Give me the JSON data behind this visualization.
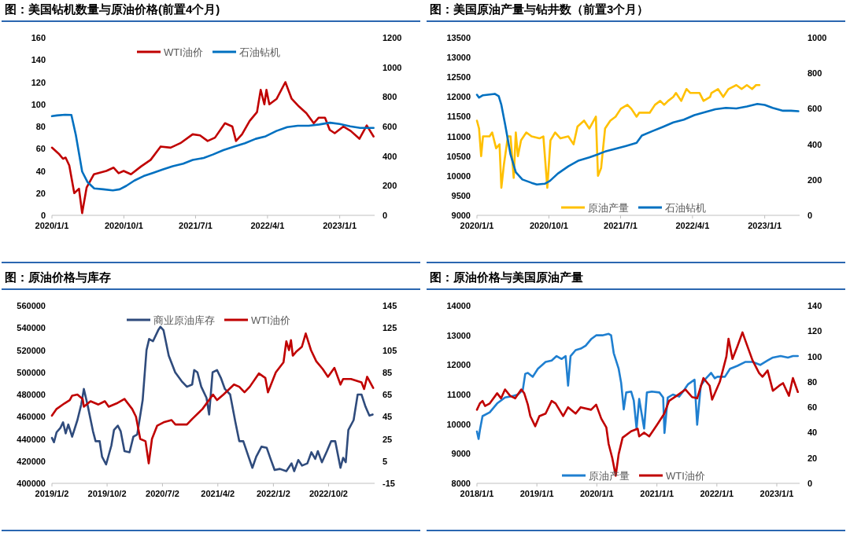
{
  "chart_data": [
    {
      "type": "line",
      "title": "图：美国钻机数量与原油价格(前置4个月)",
      "legend": "top",
      "xlim": [
        "2020-01-01",
        "2023-05-14"
      ],
      "xticks": [
        {
          "value": "2020-01-01",
          "label": "2020/1/1"
        },
        {
          "value": "2020-10-01",
          "label": "2020/10/1"
        },
        {
          "value": "2021-07-01",
          "label": "2021/7/1"
        },
        {
          "value": "2022-04-01",
          "label": "2022/4/1"
        },
        {
          "value": "2023-01-01",
          "label": "2023/1/1"
        }
      ],
      "ylim": [
        0,
        160
      ],
      "yticks": [
        0,
        20,
        40,
        60,
        80,
        100,
        120,
        140,
        160
      ],
      "y2lim": [
        0,
        1200
      ],
      "y2ticks": [
        0,
        200,
        400,
        600,
        800,
        1000,
        1200
      ],
      "series": [
        {
          "name": "WTI油价",
          "color": "#c00000",
          "x": [
            "2020-01-01",
            "2020-01-29",
            "2020-02-12",
            "2020-02-22",
            "2020-03-07",
            "2020-03-26",
            "2020-04-13",
            "2020-04-25",
            "2020-05-12",
            "2020-06-09",
            "2020-07-26",
            "2020-08-23",
            "2020-09-11",
            "2020-09-30",
            "2020-10-28",
            "2020-12-05",
            "2021-01-11",
            "2021-02-18",
            "2021-03-28",
            "2021-05-04",
            "2021-06-20",
            "2021-07-18",
            "2021-08-16",
            "2021-09-13",
            "2021-10-21",
            "2021-11-18",
            "2021-12-02",
            "2021-12-25",
            "2022-01-23",
            "2022-02-20",
            "2022-03-06",
            "2022-03-20",
            "2022-03-28",
            "2022-04-08",
            "2022-05-06",
            "2022-06-08",
            "2022-07-02",
            "2022-07-30",
            "2022-08-27",
            "2022-09-24",
            "2022-10-13",
            "2022-11-06",
            "2022-11-24",
            "2022-12-13",
            "2023-01-15",
            "2023-02-12",
            "2023-03-17",
            "2023-04-14",
            "2023-05-10"
          ],
          "values": [
            61,
            55,
            51,
            52,
            45,
            20,
            24,
            2,
            25,
            37,
            40,
            43,
            38,
            40,
            37,
            44,
            50,
            62,
            61,
            65,
            73,
            72,
            67,
            70,
            83,
            80,
            67,
            73,
            85,
            93,
            113,
            100,
            113,
            100,
            105,
            120,
            105,
            98,
            92,
            83,
            88,
            88,
            77,
            74,
            80,
            76,
            69,
            81,
            71
          ]
        },
        {
          "name": "石油钻机",
          "color": "#0070c0",
          "axis": "y2",
          "x": [
            "2020-01-01",
            "2020-01-20",
            "2020-02-20",
            "2020-03-15",
            "2020-04-01",
            "2020-04-25",
            "2020-05-15",
            "2020-06-10",
            "2020-07-15",
            "2020-08-20",
            "2020-09-15",
            "2020-10-10",
            "2020-11-10",
            "2020-12-15",
            "2021-01-20",
            "2021-02-25",
            "2021-04-05",
            "2021-05-15",
            "2021-06-20",
            "2021-08-01",
            "2021-09-05",
            "2021-10-15",
            "2021-11-25",
            "2022-01-05",
            "2022-02-15",
            "2022-03-25",
            "2022-05-05",
            "2022-06-15",
            "2022-07-25",
            "2022-09-05",
            "2022-10-15",
            "2022-11-25",
            "2023-01-01",
            "2023-02-10",
            "2023-03-20",
            "2023-05-10"
          ],
          "values": [
            670,
            675,
            680,
            678,
            543,
            296,
            226,
            182,
            176,
            169,
            176,
            199,
            235,
            265,
            287,
            309,
            332,
            349,
            374,
            388,
            411,
            441,
            464,
            487,
            517,
            534,
            570,
            596,
            605,
            605,
            614,
            626,
            617,
            601,
            591,
            591
          ]
        }
      ]
    },
    {
      "type": "line",
      "title": "图：美国原油产量与钻井数（前置3个月）",
      "legend": "bottom",
      "xlim": [
        "2020-01-01",
        "2023-05-14"
      ],
      "xticks": [
        {
          "value": "2020-01-01",
          "label": "2020/1/1"
        },
        {
          "value": "2020-10-01",
          "label": "2020/10/1"
        },
        {
          "value": "2021-07-01",
          "label": "2021/7/1"
        },
        {
          "value": "2022-04-01",
          "label": "2022/4/1"
        },
        {
          "value": "2023-01-01",
          "label": "2023/1/1"
        }
      ],
      "ylim": [
        9000,
        13500
      ],
      "yticks": [
        9000,
        9500,
        10000,
        10500,
        11000,
        11500,
        12000,
        12500,
        13000,
        13500
      ],
      "y2lim": [
        0,
        1000
      ],
      "y2ticks": [
        0,
        200,
        400,
        600,
        800,
        1000
      ],
      "series": [
        {
          "name": "原油产量",
          "color": "#ffc000",
          "x": [
            "2020-01-01",
            "2020-01-09",
            "2020-01-17",
            "2020-01-24",
            "2020-02-18",
            "2020-02-28",
            "2020-03-14",
            "2020-03-27",
            "2020-04-03",
            "2020-04-13",
            "2020-04-28",
            "2020-05-08",
            "2020-05-20",
            "2020-05-28",
            "2020-06-05",
            "2020-06-17",
            "2020-07-07",
            "2020-07-27",
            "2020-08-26",
            "2020-09-10",
            "2020-09-25",
            "2020-10-07",
            "2020-10-25",
            "2020-11-14",
            "2020-12-14",
            "2021-01-03",
            "2021-01-18",
            "2021-02-12",
            "2021-03-04",
            "2021-03-29",
            "2021-04-06",
            "2021-04-18",
            "2021-05-03",
            "2021-05-23",
            "2021-06-12",
            "2021-07-02",
            "2021-07-27",
            "2021-08-11",
            "2021-08-31",
            "2021-09-10",
            "2021-10-20",
            "2021-11-09",
            "2021-11-29",
            "2021-12-14",
            "2021-12-29",
            "2022-01-18",
            "2022-01-28",
            "2022-02-17",
            "2022-03-09",
            "2022-03-24",
            "2022-04-08",
            "2022-04-28",
            "2022-05-13",
            "2022-06-07",
            "2022-06-12",
            "2022-07-07",
            "2022-07-27",
            "2022-08-16",
            "2022-09-15",
            "2022-10-05",
            "2022-10-25",
            "2022-11-14",
            "2022-11-29",
            "2022-12-12"
          ],
          "values": [
            11400,
            11200,
            10500,
            11000,
            11000,
            11100,
            10700,
            10800,
            9700,
            10300,
            11000,
            11000,
            9950,
            11100,
            10500,
            10900,
            11100,
            11000,
            10950,
            11000,
            9700,
            10900,
            11100,
            10950,
            11000,
            10800,
            11250,
            11400,
            11200,
            11500,
            10000,
            10200,
            11200,
            11400,
            11500,
            11700,
            11800,
            11700,
            11500,
            11600,
            11600,
            11800,
            11900,
            11800,
            11900,
            12000,
            12100,
            11900,
            12200,
            12100,
            12100,
            12100,
            11900,
            12000,
            12100,
            12200,
            12000,
            12200,
            12300,
            12200,
            12300,
            12200,
            12300,
            12300
          ]
        },
        {
          "name": "石油钻机",
          "color": "#0070c0",
          "axis": "y2",
          "x": [
            "2020-01-01",
            "2020-01-09",
            "2020-01-24",
            "2020-03-09",
            "2020-03-24",
            "2020-04-03",
            "2020-04-18",
            "2020-05-08",
            "2020-05-28",
            "2020-06-22",
            "2020-07-27",
            "2020-08-16",
            "2020-09-15",
            "2020-10-05",
            "2020-11-04",
            "2020-12-14",
            "2021-01-23",
            "2021-03-04",
            "2021-04-03",
            "2021-05-03",
            "2021-06-12",
            "2021-07-22",
            "2021-08-31",
            "2021-09-20",
            "2021-10-30",
            "2021-12-09",
            "2022-01-18",
            "2022-02-27",
            "2022-04-08",
            "2022-05-18",
            "2022-06-27",
            "2022-08-06",
            "2022-09-15",
            "2022-10-25",
            "2022-12-04",
            "2023-01-01",
            "2023-01-31",
            "2023-03-12",
            "2023-04-11",
            "2023-05-09"
          ],
          "values": [
            679,
            663,
            676,
            684,
            671,
            622,
            507,
            342,
            243,
            202,
            183,
            174,
            178,
            194,
            235,
            276,
            309,
            326,
            342,
            359,
            375,
            391,
            408,
            449,
            474,
            498,
            523,
            539,
            564,
            581,
            597,
            605,
            602,
            613,
            627,
            622,
            605,
            589,
            589,
            586
          ]
        }
      ]
    },
    {
      "type": "line",
      "title": "图：原油价格与库存",
      "legend": "top",
      "xlim": [
        "2019-01-02",
        "2023-05-18"
      ],
      "xticks": [
        {
          "value": "2019-01-02",
          "label": "2019/1/2"
        },
        {
          "value": "2019-10-02",
          "label": "2019/10/2"
        },
        {
          "value": "2020-07-02",
          "label": "2020/7/2"
        },
        {
          "value": "2021-04-02",
          "label": "2021/4/2"
        },
        {
          "value": "2022-01-02",
          "label": "2022/1/2"
        },
        {
          "value": "2022-10-02",
          "label": "2022/10/2"
        }
      ],
      "ylim": [
        400000,
        560000
      ],
      "yticks": [
        400000,
        420000,
        440000,
        460000,
        480000,
        500000,
        520000,
        540000,
        560000
      ],
      "y2lim": [
        -15,
        145
      ],
      "y2ticks": [
        -15,
        5,
        25,
        45,
        65,
        85,
        105,
        125,
        145
      ],
      "series": [
        {
          "name": "商业原油库存",
          "color": "#2f4b7c",
          "x": [
            "2019-01-02",
            "2019-01-12",
            "2019-01-25",
            "2019-02-13",
            "2019-02-26",
            "2019-03-11",
            "2019-03-24",
            "2019-04-12",
            "2019-05-08",
            "2019-05-27",
            "2019-06-09",
            "2019-06-28",
            "2019-07-24",
            "2019-08-06",
            "2019-08-26",
            "2019-09-07",
            "2019-09-27",
            "2019-10-23",
            "2019-11-05",
            "2019-11-24",
            "2019-12-08",
            "2019-12-27",
            "2020-01-21",
            "2020-02-09",
            "2020-02-28",
            "2020-03-26",
            "2020-04-14",
            "2020-04-27",
            "2020-05-16",
            "2020-06-11",
            "2020-06-22",
            "2020-07-07",
            "2020-08-02",
            "2020-09-03",
            "2020-10-05",
            "2020-10-31",
            "2020-11-26",
            "2020-12-06",
            "2020-12-22",
            "2021-01-10",
            "2021-02-05",
            "2021-02-18",
            "2021-03-07",
            "2021-03-29",
            "2021-04-17",
            "2021-05-07",
            "2021-06-02",
            "2021-06-28",
            "2021-07-17",
            "2021-08-06",
            "2021-09-01",
            "2021-09-20",
            "2021-10-09",
            "2021-11-04",
            "2021-11-30",
            "2021-12-19",
            "2022-01-08",
            "2022-02-03",
            "2022-03-07",
            "2022-04-02",
            "2022-04-15",
            "2022-05-05",
            "2022-05-24",
            "2022-06-19",
            "2022-07-09",
            "2022-07-28",
            "2022-08-10",
            "2022-08-30",
            "2022-09-24",
            "2022-10-15",
            "2022-11-04",
            "2022-11-30",
            "2022-12-13",
            "2022-12-26",
            "2023-01-08",
            "2023-02-03",
            "2023-02-23",
            "2023-03-14",
            "2023-04-03",
            "2023-04-22",
            "2023-05-08"
          ],
          "values": [
            441000,
            437000,
            446000,
            450000,
            455000,
            445000,
            453000,
            442000,
            457000,
            471000,
            485000,
            470000,
            447000,
            438000,
            438000,
            424000,
            417000,
            434000,
            448000,
            452000,
            447000,
            429000,
            428000,
            442000,
            444000,
            475000,
            520000,
            530000,
            528000,
            538000,
            541000,
            538000,
            515000,
            500000,
            492000,
            487000,
            489000,
            502000,
            500000,
            487000,
            477000,
            462000,
            500000,
            502000,
            495000,
            485000,
            480000,
            455000,
            438000,
            438000,
            424000,
            414000,
            424000,
            433000,
            432000,
            422000,
            412000,
            413000,
            411000,
            418000,
            411000,
            421000,
            416000,
            418000,
            428000,
            422000,
            429000,
            419000,
            429000,
            438000,
            438000,
            414000,
            423000,
            419000,
            448000,
            457000,
            480000,
            480000,
            469000,
            461000,
            462000
          ]
        },
        {
          "name": "WTI油价",
          "color": "#c00000",
          "axis": "y2",
          "x": [
            "2019-01-02",
            "2019-01-25",
            "2019-03-05",
            "2019-03-31",
            "2019-04-12",
            "2019-05-08",
            "2019-06-03",
            "2019-06-09",
            "2019-07-12",
            "2019-08-20",
            "2019-09-21",
            "2019-10-10",
            "2019-11-18",
            "2019-12-27",
            "2020-02-03",
            "2020-02-22",
            "2020-03-14",
            "2020-04-09",
            "2020-04-25",
            "2020-05-11",
            "2020-06-06",
            "2020-07-08",
            "2020-08-16",
            "2020-09-04",
            "2020-10-31",
            "2020-11-26",
            "2021-01-16",
            "2021-03-09",
            "2021-03-29",
            "2021-04-30",
            "2021-06-21",
            "2021-07-17",
            "2021-08-12",
            "2021-09-07",
            "2021-10-22",
            "2021-11-23",
            "2021-12-06",
            "2022-01-14",
            "2022-02-21",
            "2022-03-07",
            "2022-03-20",
            "2022-03-30",
            "2022-04-08",
            "2022-04-27",
            "2022-05-23",
            "2022-06-11",
            "2022-07-07",
            "2022-08-02",
            "2022-09-03",
            "2022-09-29",
            "2022-10-31",
            "2022-11-30",
            "2022-12-13",
            "2023-01-21",
            "2023-03-14",
            "2023-03-27",
            "2023-04-11",
            "2023-05-11"
          ],
          "values": [
            46,
            52,
            57,
            60,
            64,
            65,
            61,
            54,
            59,
            56,
            59,
            54,
            57,
            61,
            52,
            45,
            25,
            23,
            3,
            25,
            37,
            40,
            42,
            38,
            38,
            43,
            52,
            65,
            60,
            65,
            74,
            72,
            67,
            72,
            84,
            80,
            67,
            85,
            94,
            113,
            105,
            114,
            100,
            104,
            108,
            120,
            105,
            95,
            88,
            81,
            89,
            74,
            79,
            79,
            76,
            70,
            81,
            71
          ]
        }
      ]
    },
    {
      "type": "line",
      "title": "图：原油价格与美国原油产量",
      "legend": "bottom",
      "xlim": [
        "2018-01-01",
        "2023-05-20"
      ],
      "xticks": [
        {
          "value": "2018-01-01",
          "label": "2018/1/1"
        },
        {
          "value": "2019-01-01",
          "label": "2019/1/1"
        },
        {
          "value": "2020-01-01",
          "label": "2020/1/1"
        },
        {
          "value": "2021-01-01",
          "label": "2021/1/1"
        },
        {
          "value": "2022-01-01",
          "label": "2022/1/1"
        },
        {
          "value": "2023-01-01",
          "label": "2023/1/1"
        }
      ],
      "ylim": [
        8000,
        14000
      ],
      "yticks": [
        8000,
        9000,
        10000,
        11000,
        12000,
        13000,
        14000
      ],
      "y2lim": [
        0,
        140
      ],
      "y2ticks": [
        0,
        20,
        40,
        60,
        80,
        100,
        120,
        140
      ],
      "series": [
        {
          "name": "原油产量",
          "color": "#1f7fd0",
          "x": [
            "2018-01-01",
            "2018-01-11",
            "2018-01-19",
            "2018-02-04",
            "2018-03-20",
            "2018-05-04",
            "2018-06-21",
            "2018-08-07",
            "2018-09-07",
            "2018-10-07",
            "2018-10-22",
            "2018-11-07",
            "2018-12-07",
            "2019-01-07",
            "2019-02-23",
            "2019-04-01",
            "2019-05-01",
            "2019-06-01",
            "2019-06-25",
            "2019-07-10",
            "2019-07-25",
            "2019-08-25",
            "2019-09-25",
            "2019-10-25",
            "2019-11-27",
            "2019-12-28",
            "2020-02-04",
            "2020-03-13",
            "2020-03-28",
            "2020-04-13",
            "2020-05-13",
            "2020-05-28",
            "2020-06-13",
            "2020-06-28",
            "2020-07-28",
            "2020-08-13",
            "2020-08-30",
            "2020-09-15",
            "2020-10-15",
            "2020-11-01",
            "2020-12-01",
            "2021-01-16",
            "2021-02-08",
            "2021-02-16",
            "2021-03-08",
            "2021-04-08",
            "2021-05-16",
            "2021-06-18",
            "2021-07-10",
            "2021-08-18",
            "2021-09-03",
            "2021-09-25",
            "2021-10-27",
            "2021-11-27",
            "2021-12-19",
            "2022-01-04",
            "2022-02-19",
            "2022-03-22",
            "2022-05-06",
            "2022-06-22",
            "2022-08-06",
            "2022-09-22",
            "2022-11-06",
            "2022-12-08",
            "2023-01-24",
            "2023-03-10",
            "2023-04-09",
            "2023-05-09"
          ],
          "values": [
            9750,
            9500,
            9800,
            10270,
            10400,
            10700,
            10900,
            10950,
            11000,
            11150,
            11700,
            11730,
            11600,
            11870,
            12100,
            12150,
            12300,
            12200,
            12300,
            11300,
            12300,
            12500,
            12550,
            12650,
            12870,
            13000,
            13000,
            13050,
            13000,
            12400,
            11870,
            11400,
            10500,
            11070,
            11100,
            10800,
            9850,
            10850,
            9850,
            11070,
            11100,
            11070,
            10900,
            9700,
            10900,
            11000,
            10930,
            11170,
            11350,
            11500,
            9980,
            11300,
            11550,
            11730,
            11550,
            11600,
            11600,
            11870,
            11970,
            12100,
            12100,
            12000,
            12150,
            12250,
            12300,
            12250,
            12300,
            12300
          ]
        },
        {
          "name": "WTI油价",
          "color": "#c00000",
          "axis": "y2",
          "x": [
            "2018-01-01",
            "2018-01-19",
            "2018-02-04",
            "2018-02-19",
            "2018-03-20",
            "2018-05-04",
            "2018-05-28",
            "2018-06-21",
            "2018-07-22",
            "2018-08-22",
            "2018-09-28",
            "2018-10-16",
            "2018-11-07",
            "2018-11-22",
            "2018-12-22",
            "2019-01-16",
            "2019-02-23",
            "2019-04-01",
            "2019-04-25",
            "2019-06-10",
            "2019-07-10",
            "2019-08-25",
            "2019-09-25",
            "2019-11-27",
            "2019-12-28",
            "2020-01-28",
            "2020-02-28",
            "2020-03-13",
            "2020-04-04",
            "2020-04-25",
            "2020-05-13",
            "2020-06-06",
            "2020-07-28",
            "2020-09-06",
            "2020-09-15",
            "2020-10-15",
            "2020-11-15",
            "2021-01-01",
            "2021-02-15",
            "2021-03-16",
            "2021-05-01",
            "2021-06-24",
            "2021-08-03",
            "2021-09-03",
            "2021-10-11",
            "2021-11-18",
            "2021-12-03",
            "2022-01-19",
            "2022-02-28",
            "2022-03-13",
            "2022-04-06",
            "2022-05-06",
            "2022-06-06",
            "2022-06-28",
            "2022-08-06",
            "2022-09-15",
            "2022-10-06",
            "2022-11-06",
            "2022-12-08",
            "2023-01-16",
            "2023-02-08",
            "2023-03-16",
            "2023-04-09",
            "2023-05-09"
          ],
          "values": [
            58,
            63,
            65,
            61,
            63,
            71,
            67,
            74,
            69,
            67,
            74,
            71,
            62,
            53,
            45,
            53,
            55,
            65,
            63,
            53,
            60,
            55,
            60,
            58,
            62,
            51,
            44,
            31,
            20,
            6,
            23,
            36,
            41,
            43,
            37,
            40,
            37,
            46,
            55,
            65,
            69,
            74,
            68,
            67,
            83,
            77,
            66,
            80,
            100,
            114,
            98,
            108,
            119,
            111,
            97,
            87,
            84,
            89,
            73,
            77,
            79,
            69,
            83,
            72
          ]
        }
      ]
    }
  ]
}
